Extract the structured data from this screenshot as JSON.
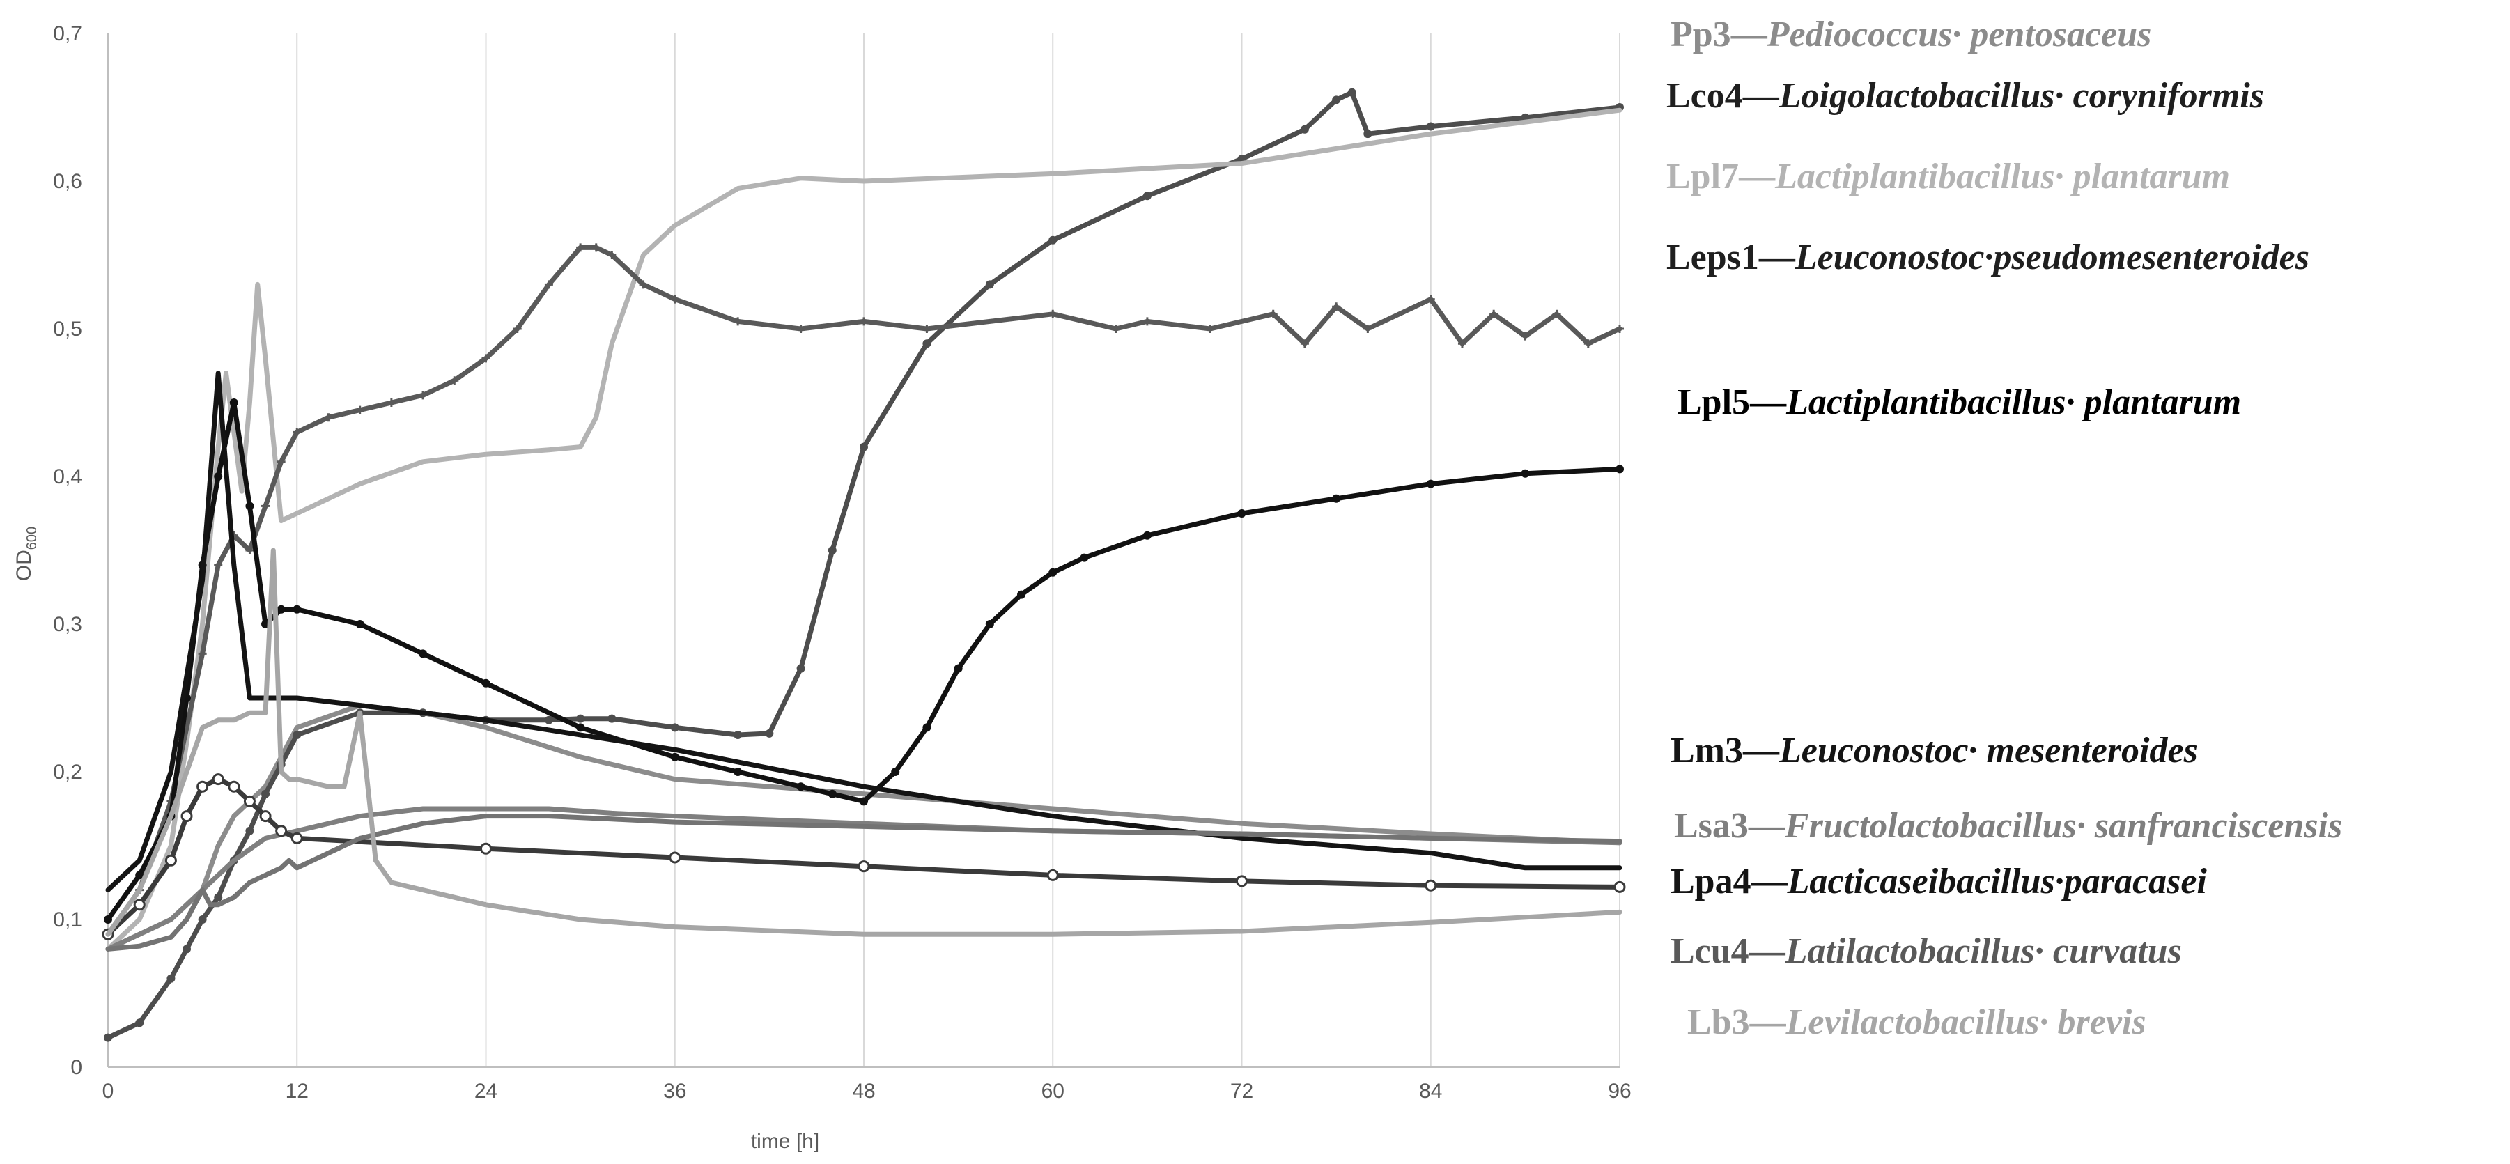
{
  "chart_data": {
    "type": "line",
    "xlabel": "time [h]",
    "ylabel_main": "OD",
    "ylabel_sub": "600",
    "xlim": [
      0,
      96
    ],
    "ylim": [
      0,
      0.7
    ],
    "x_ticks": [
      "0",
      "12",
      "24",
      "36",
      "48",
      "60",
      "72",
      "84",
      "96"
    ],
    "y_ticks": [
      "0",
      "0,1",
      "0,2",
      "0,3",
      "0,4",
      "0,5",
      "0,6",
      "0,7"
    ],
    "grid": "vertical",
    "legend_position": "right",
    "series": [
      {
        "name": "Pp3",
        "species": "Pediococcus· pentosaceus",
        "color": "#8c8c8c",
        "marker": "none",
        "x": [
          0,
          2,
          4,
          6,
          7,
          8,
          9,
          10,
          11,
          12,
          16,
          20,
          24,
          30,
          32,
          36,
          48,
          60,
          72,
          84,
          96
        ],
        "y": [
          0.08,
          0.09,
          0.1,
          0.12,
          0.15,
          0.17,
          0.18,
          0.19,
          0.21,
          0.23,
          0.245,
          0.24,
          0.23,
          0.21,
          0.205,
          0.195,
          0.185,
          0.175,
          0.165,
          0.158,
          0.152
        ]
      },
      {
        "name": "Lco4",
        "species": "Loigolactobacillus· coryniformis",
        "color": "#4d4d4d",
        "marker": "dot",
        "x": [
          0,
          2,
          4,
          5,
          6,
          7,
          8,
          9,
          10,
          11,
          12,
          16,
          20,
          24,
          28,
          30,
          32,
          36,
          40,
          42,
          44,
          46,
          48,
          52,
          56,
          60,
          66,
          72,
          76,
          78,
          79,
          80,
          84,
          90,
          96
        ],
        "y": [
          0.02,
          0.03,
          0.06,
          0.08,
          0.1,
          0.115,
          0.14,
          0.16,
          0.185,
          0.205,
          0.225,
          0.24,
          0.24,
          0.235,
          0.235,
          0.236,
          0.236,
          0.23,
          0.225,
          0.226,
          0.27,
          0.35,
          0.42,
          0.49,
          0.53,
          0.56,
          0.59,
          0.615,
          0.635,
          0.655,
          0.66,
          0.632,
          0.637,
          0.643,
          0.65
        ]
      },
      {
        "name": "Lpl7",
        "species": "Lactiplantibacillus· plantarum",
        "color": "#b3b3b3",
        "marker": "none",
        "x": [
          0,
          2,
          4,
          5,
          6,
          7,
          7.5,
          8,
          8.5,
          9,
          9.5,
          10,
          11,
          12,
          16,
          20,
          24,
          28,
          30,
          31,
          32,
          34,
          36,
          40,
          44,
          48,
          60,
          72,
          84,
          96
        ],
        "y": [
          0.08,
          0.1,
          0.15,
          0.22,
          0.3,
          0.42,
          0.47,
          0.43,
          0.39,
          0.45,
          0.53,
          0.48,
          0.37,
          0.375,
          0.395,
          0.41,
          0.415,
          0.418,
          0.42,
          0.44,
          0.49,
          0.55,
          0.57,
          0.595,
          0.602,
          0.6,
          0.605,
          0.612,
          0.632,
          0.648
        ]
      },
      {
        "name": "Leps1",
        "species": "Leuconostoc·pseudomesenteroides",
        "color": "#595959",
        "marker": "cross",
        "x": [
          0,
          2,
          4,
          6,
          7,
          8,
          9,
          10,
          11,
          12,
          14,
          16,
          18,
          20,
          22,
          24,
          26,
          28,
          30,
          31,
          32,
          34,
          36,
          40,
          44,
          48,
          52,
          60,
          64,
          66,
          70,
          74,
          76,
          78,
          80,
          84,
          86,
          88,
          90,
          92,
          94,
          96
        ],
        "y": [
          0.09,
          0.12,
          0.18,
          0.28,
          0.34,
          0.36,
          0.35,
          0.38,
          0.41,
          0.43,
          0.44,
          0.445,
          0.45,
          0.455,
          0.465,
          0.48,
          0.5,
          0.53,
          0.555,
          0.555,
          0.55,
          0.53,
          0.52,
          0.505,
          0.5,
          0.505,
          0.5,
          0.51,
          0.5,
          0.505,
          0.5,
          0.51,
          0.49,
          0.515,
          0.5,
          0.52,
          0.49,
          0.51,
          0.495,
          0.51,
          0.49,
          0.5
        ]
      },
      {
        "name": "Lpl5",
        "species": "Lactiplantibacillus· plantarum",
        "color": "#111111",
        "marker": "dot",
        "x": [
          0,
          2,
          4,
          5,
          6,
          7,
          8,
          9,
          10,
          11,
          12,
          16,
          20,
          24,
          30,
          36,
          40,
          44,
          46,
          48,
          50,
          52,
          54,
          56,
          58,
          60,
          62,
          66,
          72,
          78,
          84,
          90,
          96
        ],
        "y": [
          0.1,
          0.13,
          0.17,
          0.25,
          0.34,
          0.4,
          0.45,
          0.38,
          0.3,
          0.31,
          0.31,
          0.3,
          0.28,
          0.26,
          0.23,
          0.21,
          0.2,
          0.19,
          0.185,
          0.18,
          0.2,
          0.23,
          0.27,
          0.3,
          0.32,
          0.335,
          0.345,
          0.36,
          0.375,
          0.385,
          0.395,
          0.402,
          0.405
        ]
      },
      {
        "name": "Lm3",
        "species": "Leuconostoc· mesenteroides",
        "color": "#141414",
        "marker": "none",
        "x": [
          0,
          2,
          4,
          6,
          7,
          8,
          9,
          10,
          11,
          12,
          16,
          24,
          36,
          48,
          60,
          72,
          84,
          90,
          96
        ],
        "y": [
          0.12,
          0.14,
          0.2,
          0.33,
          0.47,
          0.34,
          0.25,
          0.25,
          0.25,
          0.25,
          0.245,
          0.235,
          0.215,
          0.19,
          0.17,
          0.155,
          0.145,
          0.135,
          0.135
        ]
      },
      {
        "name": "Lsa3",
        "species": "Fructolactobacillus· sanfranciscensis",
        "color": "#7f7f7f",
        "marker": "none",
        "x": [
          0,
          2,
          4,
          6,
          8,
          10,
          12,
          16,
          20,
          24,
          28,
          32,
          36,
          48,
          60,
          72,
          84,
          96
        ],
        "y": [
          0.08,
          0.09,
          0.1,
          0.12,
          0.14,
          0.155,
          0.16,
          0.17,
          0.175,
          0.175,
          0.175,
          0.172,
          0.17,
          0.165,
          0.16,
          0.158,
          0.155,
          0.152
        ]
      },
      {
        "name": "Lpa4",
        "species": "Lacticaseibacillus·paracasei",
        "color": "#3a3a3a",
        "marker": "circle",
        "x": [
          0,
          2,
          4,
          5,
          6,
          7,
          8,
          9,
          10,
          11,
          12,
          24,
          36,
          48,
          60,
          72,
          84,
          96
        ],
        "y": [
          0.09,
          0.11,
          0.14,
          0.17,
          0.19,
          0.195,
          0.19,
          0.18,
          0.17,
          0.16,
          0.155,
          0.148,
          0.142,
          0.136,
          0.13,
          0.126,
          0.123,
          0.122
        ]
      },
      {
        "name": "Lcu4",
        "species": "Latilactobacillus· curvatus",
        "color": "#737373",
        "marker": "none",
        "x": [
          0,
          2,
          4,
          5,
          6,
          6.5,
          7,
          8,
          9,
          10,
          11,
          11.5,
          12,
          14,
          16,
          18,
          20,
          24,
          28,
          32,
          36,
          48,
          60,
          72,
          84,
          96
        ],
        "y": [
          0.08,
          0.082,
          0.088,
          0.1,
          0.12,
          0.11,
          0.11,
          0.115,
          0.125,
          0.13,
          0.135,
          0.14,
          0.135,
          0.145,
          0.155,
          0.16,
          0.165,
          0.17,
          0.17,
          0.168,
          0.166,
          0.163,
          0.16,
          0.158,
          0.155,
          0.153
        ]
      },
      {
        "name": "Lb3",
        "species": "Levilactobacillus· brevis",
        "color": "#a6a6a6",
        "marker": "none",
        "x": [
          0,
          2,
          4,
          6,
          7,
          8,
          9,
          10,
          10.5,
          11,
          11.5,
          12,
          14,
          15,
          16,
          17,
          18,
          20,
          24,
          30,
          36,
          48,
          60,
          72,
          84,
          96
        ],
        "y": [
          0.09,
          0.12,
          0.17,
          0.23,
          0.235,
          0.235,
          0.24,
          0.24,
          0.35,
          0.2,
          0.195,
          0.195,
          0.19,
          0.19,
          0.24,
          0.14,
          0.125,
          0.12,
          0.11,
          0.1,
          0.095,
          0.09,
          0.09,
          0.092,
          0.098,
          0.105
        ]
      }
    ]
  }
}
